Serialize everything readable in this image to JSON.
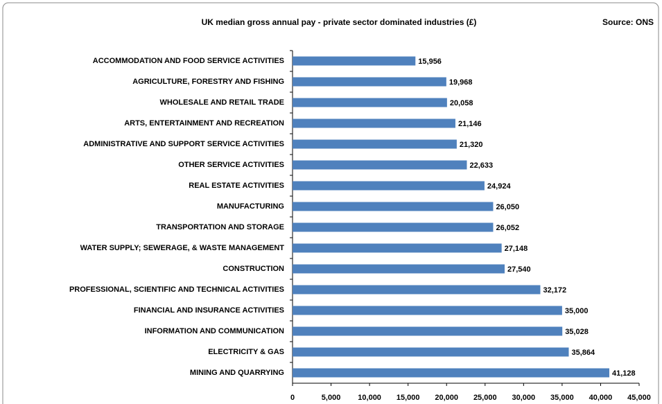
{
  "chart_data": {
    "type": "hbar",
    "title": "UK median gross annual pay - private sector dominated industries (£)",
    "source": "Source: ONS",
    "categories": [
      "ACCOMMODATION AND FOOD SERVICE ACTIVITIES",
      "AGRICULTURE, FORESTRY AND FISHING",
      "WHOLESALE AND RETAIL TRADE",
      "ARTS, ENTERTAINMENT AND RECREATION",
      "ADMINISTRATIVE AND SUPPORT SERVICE ACTIVITIES",
      "OTHER SERVICE ACTIVITIES",
      "REAL ESTATE ACTIVITIES",
      "MANUFACTURING",
      "TRANSPORTATION AND STORAGE",
      "WATER SUPPLY; SEWERAGE, & WASTE MANAGEMENT",
      "CONSTRUCTION",
      "PROFESSIONAL, SCIENTIFIC AND TECHNICAL ACTIVITIES",
      "FINANCIAL AND INSURANCE ACTIVITIES",
      "INFORMATION AND COMMUNICATION",
      "ELECTRICITY & GAS",
      "MINING AND QUARRYING"
    ],
    "values": [
      15956,
      19968,
      20058,
      21146,
      21320,
      22633,
      24924,
      26050,
      26052,
      27148,
      27540,
      32172,
      35000,
      35028,
      35864,
      41128
    ],
    "value_labels": [
      "15,956",
      "19,968",
      "20,058",
      "21,146",
      "21,320",
      "22,633",
      "24,924",
      "26,050",
      "26,052",
      "27,148",
      "27,540",
      "32,172",
      "35,000",
      "35,028",
      "35,864",
      "41,128"
    ],
    "color": "#4f81bd",
    "xlim": [
      0,
      45000
    ],
    "xticks": [
      0,
      {
        "value": 5000,
        "label": "5,000"
      },
      {
        "value": 10000,
        "label": "10,000"
      },
      {
        "value": 15000,
        "label": "15,000"
      },
      {
        "value": 20000,
        "label": "20,000"
      },
      {
        "value": 25000,
        "label": "25,000"
      },
      {
        "value": 30000,
        "label": "30,000"
      },
      {
        "value": 35000,
        "label": "35,000"
      },
      {
        "value": 40000,
        "label": "40,000"
      },
      {
        "value": 45000,
        "label": "45,000"
      }
    ]
  }
}
